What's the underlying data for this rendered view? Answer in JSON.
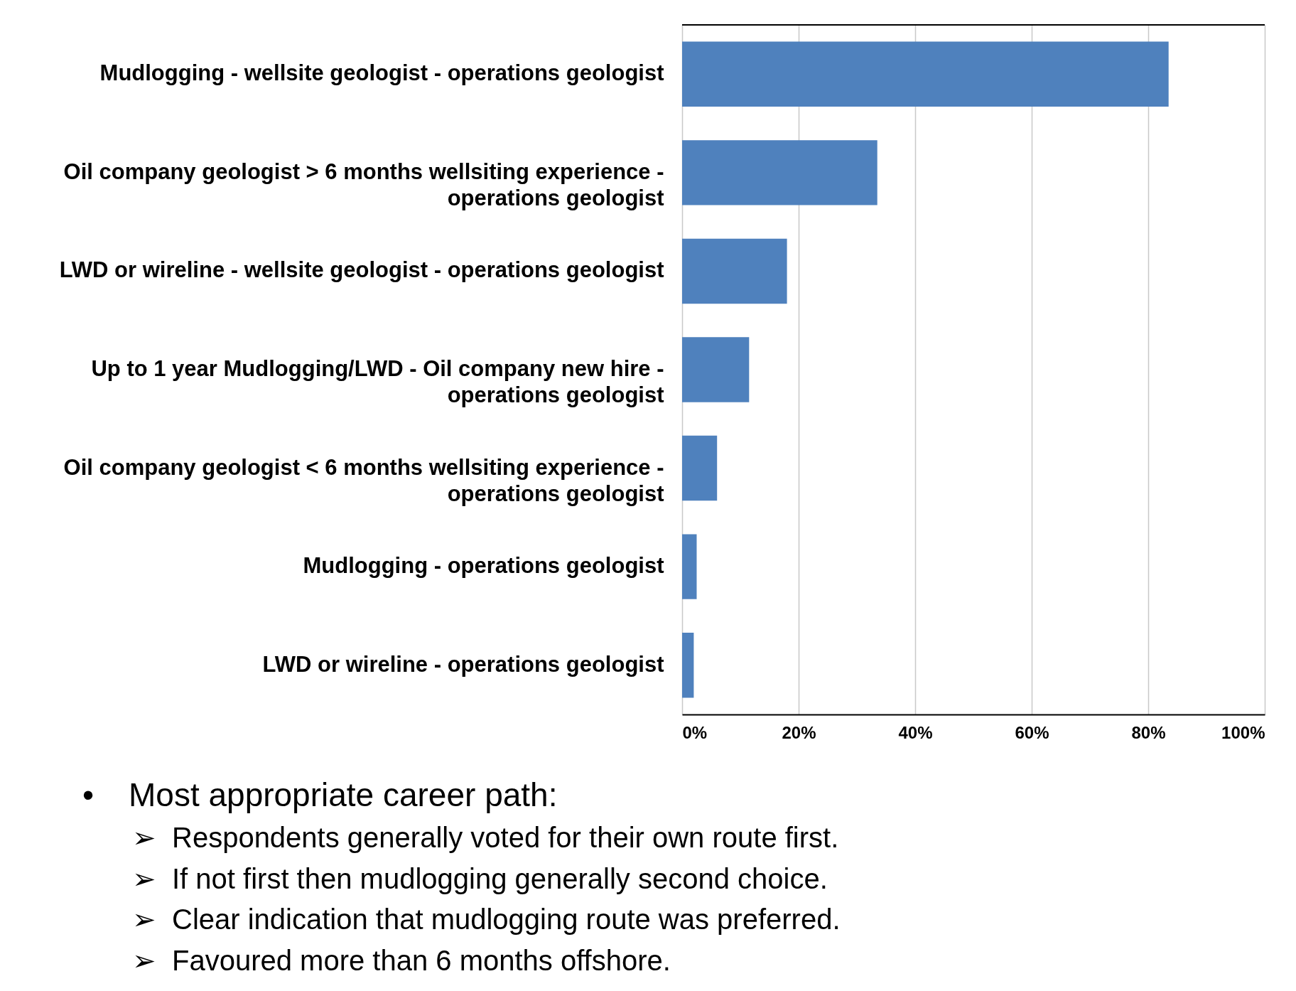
{
  "chart_data": {
    "type": "bar",
    "orientation": "horizontal",
    "categories": [
      "Mudlogging - wellsite geologist - operations geologist",
      "Oil company geologist > 6 months wellsiting experience - operations geologist",
      "LWD or wireline - wellsite geologist - operations geologist",
      "Up to 1 year Mudlogging/LWD - Oil company new hire - operations geologist",
      "Oil company geologist < 6 months wellsiting experience - operations geologist",
      "Mudlogging - operations geologist",
      "LWD or wireline - operations geologist"
    ],
    "values": [
      83.5,
      33.5,
      18,
      11.5,
      6,
      2.5,
      2
    ],
    "color": "#4f81bd",
    "xlim": [
      0,
      100
    ],
    "xticks": [
      {
        "value": 0,
        "label": "0%"
      },
      {
        "value": 20,
        "label": "20%"
      },
      {
        "value": 40,
        "label": "40%"
      },
      {
        "value": 60,
        "label": "60%"
      },
      {
        "value": 80,
        "label": "80%"
      },
      {
        "value": 100,
        "label": "100%"
      }
    ],
    "grid": "x",
    "annotations": [
      "• Most appropriate career path:",
      "➢ Respondents generally voted for their own route first.",
      "➢ If not first then mudlogging generally second choice.",
      "➢ Clear indication that mudlogging route was preferred.",
      "➢ Favoured more than 6 months offshore."
    ]
  }
}
